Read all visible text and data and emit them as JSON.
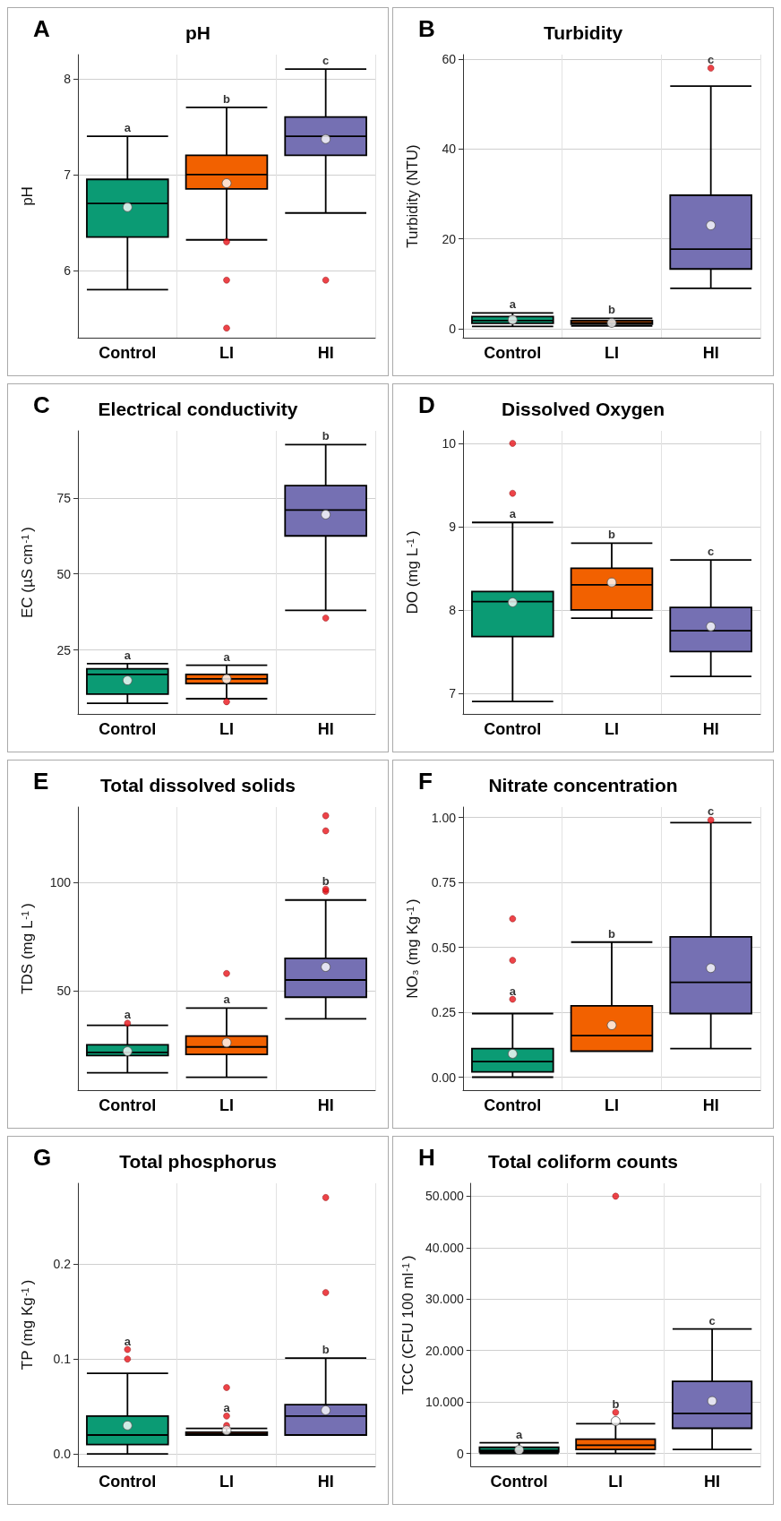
{
  "chart_data": [
    {
      "type": "box",
      "title": "pH",
      "ylabel": "pH",
      "categories": [
        "Control",
        "LI",
        "HI"
      ],
      "colors": [
        "#0b9b74",
        "#f26100",
        "#7570b3"
      ],
      "ylim": [
        5.3,
        8.25
      ],
      "yticks": [
        6,
        7,
        8
      ],
      "grid": true,
      "boxes": [
        {
          "low": 5.8,
          "q1": 6.35,
          "median": 6.7,
          "q3": 6.95,
          "high": 7.4,
          "mean": 6.66
        },
        {
          "low": 6.32,
          "q1": 6.85,
          "median": 7.0,
          "q3": 7.2,
          "high": 7.7,
          "mean": 6.91,
          "outliers": [
            6.3,
            5.9,
            5.4
          ]
        },
        {
          "low": 6.6,
          "q1": 7.2,
          "median": 7.4,
          "q3": 7.6,
          "high": 8.1,
          "mean": 7.37,
          "outliers": [
            5.9
          ]
        }
      ],
      "annotations": [
        "A",
        "a",
        "b",
        "c"
      ]
    },
    {
      "type": "box",
      "title": "Turbidity",
      "ylabel": "Turbidity (NTU)",
      "categories": [
        "Control",
        "LI",
        "HI"
      ],
      "colors": [
        "#0b9b74",
        "#f26100",
        "#7570b3"
      ],
      "ylim": [
        -2,
        61
      ],
      "yticks": [
        0,
        20,
        40,
        60
      ],
      "grid": true,
      "boxes": [
        {
          "low": 0.5,
          "q1": 1.2,
          "median": 1.8,
          "q3": 2.7,
          "high": 3.5,
          "mean": 2.0
        },
        {
          "low": 0.6,
          "q1": 1.0,
          "median": 1.3,
          "q3": 1.8,
          "high": 2.3,
          "mean": 1.3
        },
        {
          "low": 9,
          "q1": 13.3,
          "median": 17.7,
          "q3": 29.7,
          "high": 54,
          "mean": 23,
          "outliers": [
            58
          ]
        }
      ],
      "annotations": [
        "B",
        "a",
        "b",
        "c"
      ]
    },
    {
      "type": "box",
      "title": "Electrical conductivity",
      "ylabel": "EC (µS cm$^{-1}$)",
      "categories": [
        "Control",
        "LI",
        "HI"
      ],
      "colors": [
        "#0b9b74",
        "#f26100",
        "#7570b3"
      ],
      "ylim": [
        4,
        97
      ],
      "yticks": [
        25,
        50,
        75
      ],
      "grid": true,
      "boxes": [
        {
          "low": 7.5,
          "q1": 10.5,
          "median": 17,
          "q3": 18.8,
          "high": 20.5,
          "mean": 15
        },
        {
          "low": 9,
          "q1": 14,
          "median": 15.5,
          "q3": 17,
          "high": 20,
          "mean": 15.5,
          "outliers": [
            8
          ]
        },
        {
          "low": 38,
          "q1": 62.5,
          "median": 71,
          "q3": 79,
          "high": 92.5,
          "mean": 69.5,
          "outliers": [
            35.5
          ]
        }
      ],
      "annotations": [
        "C",
        "a",
        "a",
        "b"
      ]
    },
    {
      "type": "box",
      "title": "Dissolved Oxygen",
      "ylabel": "DO (mg L$^{-1}$)",
      "categories": [
        "Control",
        "LI",
        "HI"
      ],
      "colors": [
        "#0b9b74",
        "#f26100",
        "#7570b3"
      ],
      "ylim": [
        6.75,
        10.15
      ],
      "yticks": [
        7,
        8,
        9,
        10
      ],
      "grid": true,
      "boxes": [
        {
          "low": 6.9,
          "q1": 7.68,
          "median": 8.1,
          "q3": 8.22,
          "high": 9.05,
          "mean": 8.09,
          "outliers": [
            9.4,
            10.0
          ]
        },
        {
          "low": 7.9,
          "q1": 8.0,
          "median": 8.3,
          "q3": 8.5,
          "high": 8.8,
          "mean": 8.33
        },
        {
          "low": 7.2,
          "q1": 7.5,
          "median": 7.75,
          "q3": 8.03,
          "high": 8.6,
          "mean": 7.8
        }
      ],
      "annotations": [
        "D",
        "a",
        "b",
        "c"
      ]
    },
    {
      "type": "box",
      "title": "Total dissolved solids",
      "ylabel": "TDS (mg L$^{-1}$)",
      "categories": [
        "Control",
        "LI",
        "HI"
      ],
      "colors": [
        "#0b9b74",
        "#f26100",
        "#7570b3"
      ],
      "ylim": [
        4,
        135
      ],
      "yticks": [
        50,
        100
      ],
      "grid": true,
      "boxes": [
        {
          "low": 12,
          "q1": 20,
          "median": 21.5,
          "q3": 25,
          "high": 34,
          "mean": 22,
          "outliers": [
            35
          ]
        },
        {
          "low": 10,
          "q1": 20.5,
          "median": 24,
          "q3": 29,
          "high": 42,
          "mean": 26,
          "outliers": [
            58
          ]
        },
        {
          "low": 37,
          "q1": 47,
          "median": 55,
          "q3": 65,
          "high": 92,
          "mean": 61,
          "outliers": [
            96,
            97,
            124,
            131
          ]
        }
      ],
      "annotations": [
        "E",
        "a",
        "a",
        "b"
      ]
    },
    {
      "type": "box",
      "title": "Nitrate concentration",
      "ylabel": "NO₃ (mg Kg$^{-1}$)",
      "categories": [
        "Control",
        "LI",
        "HI"
      ],
      "colors": [
        "#0b9b74",
        "#f26100",
        "#7570b3"
      ],
      "ylim": [
        -0.05,
        1.04
      ],
      "yticks": [
        {
          "value": 0,
          "label": "0.00"
        },
        {
          "value": 0.25,
          "label": "0.25"
        },
        {
          "value": 0.5,
          "label": "0.50"
        },
        {
          "value": 0.75,
          "label": "0.75"
        },
        {
          "value": 1,
          "label": "1.00"
        }
      ],
      "grid": true,
      "boxes": [
        {
          "low": 0,
          "q1": 0.02,
          "median": 0.06,
          "q3": 0.11,
          "high": 0.245,
          "mean": 0.09,
          "outliers": [
            0.3,
            0.45,
            0.61
          ]
        },
        {
          "low": 0.1,
          "q1": 0.1,
          "median": 0.16,
          "q3": 0.275,
          "high": 0.52,
          "mean": 0.2
        },
        {
          "low": 0.11,
          "q1": 0.245,
          "median": 0.365,
          "q3": 0.54,
          "high": 0.98,
          "mean": 0.42,
          "outliers": [
            0.99
          ]
        }
      ],
      "annotations": [
        "F",
        "a",
        "b",
        "c"
      ]
    },
    {
      "type": "box",
      "title": "Total phosphorus",
      "ylabel": "TP (mg Kg$^{-1}$)",
      "categories": [
        "Control",
        "LI",
        "HI"
      ],
      "colors": [
        "#0b9b74",
        "#f26100",
        "#7570b3"
      ],
      "ylim": [
        -0.013,
        0.285
      ],
      "yticks": [
        {
          "value": 0,
          "label": "0.0"
        },
        {
          "value": 0.1,
          "label": "0.1"
        },
        {
          "value": 0.2,
          "label": "0.2"
        }
      ],
      "grid": true,
      "boxes": [
        {
          "low": 0,
          "q1": 0.01,
          "median": 0.02,
          "q3": 0.04,
          "high": 0.085,
          "mean": 0.03,
          "outliers": [
            0.1,
            0.11
          ]
        },
        {
          "low": 0.02,
          "q1": 0.02,
          "median": 0.021,
          "q3": 0.023,
          "high": 0.027,
          "mean": 0.025,
          "outliers": [
            0.03,
            0.04,
            0.07
          ]
        },
        {
          "low": 0.02,
          "q1": 0.02,
          "median": 0.04,
          "q3": 0.052,
          "high": 0.101,
          "mean": 0.046,
          "outliers": [
            0.17,
            0.27
          ]
        }
      ],
      "annotations": [
        "G",
        "a",
        "a",
        "b"
      ]
    },
    {
      "type": "box",
      "title": "Total coliform counts",
      "ylabel": "TCC (CFU 100 ml$^{-1}$)",
      "categories": [
        "Control",
        "LI",
        "HI"
      ],
      "colors": [
        "#0b9b74",
        "#f26100",
        "#7570b3"
      ],
      "ylim": [
        -2.5,
        52.5
      ],
      "yticks": [
        0,
        {
          "value": 10,
          "label": "10.000"
        },
        {
          "value": 20,
          "label": "20.000"
        },
        {
          "value": 30,
          "label": "30.000"
        },
        {
          "value": 40,
          "label": "40.000"
        },
        {
          "value": 50,
          "label": "50.000"
        }
      ],
      "grid": true,
      "boxes": [
        {
          "low": 0,
          "q1": 0.3,
          "median": 0.6,
          "q3": 1.2,
          "high": 2.1,
          "mean": 0.7
        },
        {
          "low": 0,
          "q1": 0.8,
          "median": 1.6,
          "q3": 2.8,
          "high": 5.8,
          "mean": 6.3,
          "outliers": [
            8,
            50
          ]
        },
        {
          "low": 0.8,
          "q1": 4.9,
          "median": 7.8,
          "q3": 14,
          "high": 24.2,
          "mean": 10.2
        }
      ],
      "annotations": [
        "H",
        "a",
        "b",
        "c"
      ]
    }
  ]
}
